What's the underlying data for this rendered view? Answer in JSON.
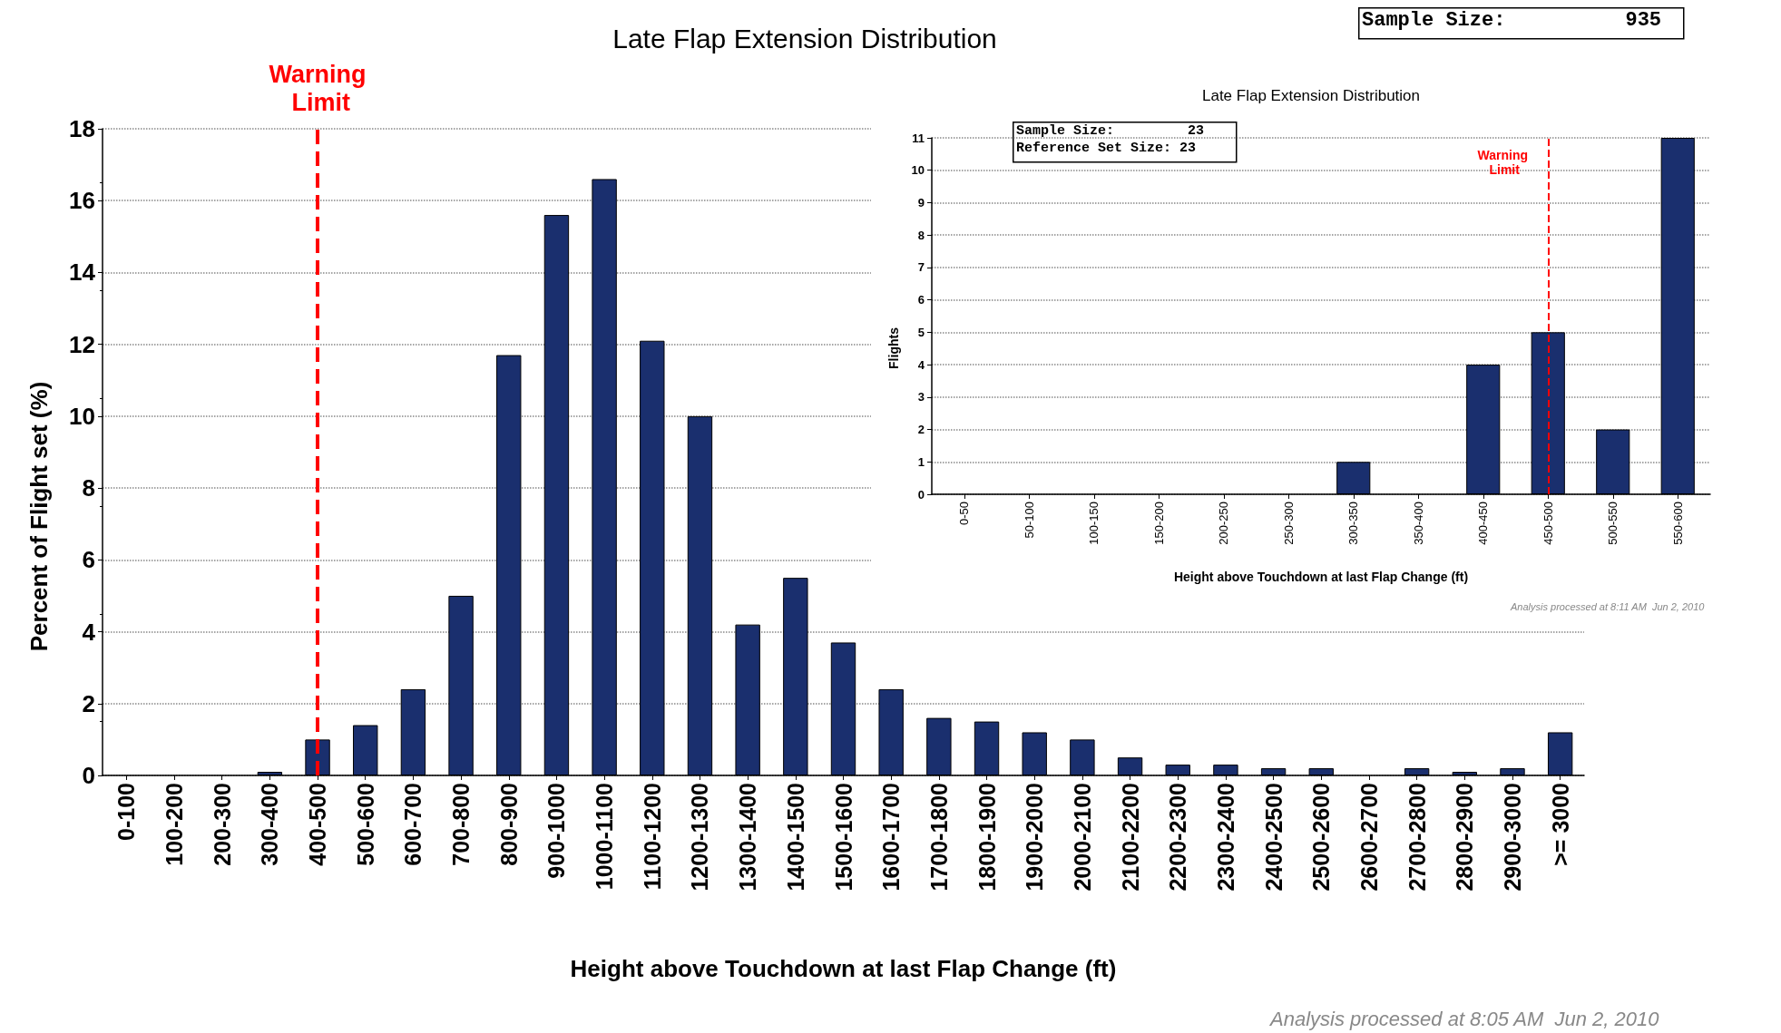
{
  "chart_data": [
    {
      "type": "bar",
      "title": "Late Flap Extension Distribution",
      "xlabel": "Height above Touchdown at last Flap Change (ft)",
      "ylabel": "Percent of Flight set (%)",
      "categories": [
        "0-100",
        "100-200",
        "200-300",
        "300-400",
        "400-500",
        "500-600",
        "600-700",
        "700-800",
        "800-900",
        "900-1000",
        "1000-1100",
        "1100-1200",
        "1200-1300",
        "1300-1400",
        "1400-1500",
        "1500-1600",
        "1600-1700",
        "1700-1800",
        "1800-1900",
        "1900-2000",
        "2000-2100",
        "2100-2200",
        "2200-2300",
        "2300-2400",
        "2400-2500",
        "2500-2600",
        "2600-2700",
        "2700-2800",
        "2800-2900",
        "2900-3000",
        ">= 3000"
      ],
      "values": [
        0,
        0,
        0,
        0.1,
        1.0,
        1.4,
        2.4,
        5.0,
        11.7,
        15.6,
        16.6,
        12.1,
        10.0,
        4.2,
        5.5,
        3.7,
        2.4,
        1.6,
        1.5,
        1.2,
        1.0,
        0.5,
        0.3,
        0.3,
        0.2,
        0.2,
        0,
        0.2,
        0.1,
        0.2,
        1.2
      ],
      "color": "#1a2f6e",
      "ylim": [
        0,
        18
      ],
      "yticks": [
        0,
        2,
        4,
        6,
        8,
        10,
        12,
        14,
        16,
        18
      ],
      "grid": "y",
      "ref_lines": [
        {
          "axis": "x",
          "value": "400-500",
          "label": "Warning Limit",
          "color": "#ff0000",
          "line_style": "dashed"
        }
      ],
      "annotations": [
        "Sample Size:          935",
        "Analysis processed at 8:05 AM  Jun 2, 2010"
      ]
    },
    {
      "type": "bar",
      "title": "Late Flap Extension Distribution",
      "xlabel": "Height above Touchdown at last Flap Change (ft)",
      "ylabel": "Flights",
      "categories": [
        "0-50",
        "50-100",
        "100-150",
        "150-200",
        "200-250",
        "250-300",
        "300-350",
        "350-400",
        "400-450",
        "450-500",
        "500-550",
        "550-600"
      ],
      "values": [
        0,
        0,
        0,
        0,
        0,
        0,
        1,
        0,
        4,
        5,
        2,
        11
      ],
      "color": "#1a2f6e",
      "ylim": [
        0,
        11
      ],
      "yticks": [
        0,
        1,
        2,
        3,
        4,
        5,
        6,
        7,
        8,
        9,
        10,
        11
      ],
      "grid": "y",
      "ref_lines": [
        {
          "axis": "x",
          "value": "450-500",
          "label": "Warning Limit",
          "color": "#ff0000",
          "line_style": "dashed"
        }
      ],
      "annotations": [
        "Sample Size:         23",
        "Reference Set Size: 23",
        "Analysis processed at 8:11 AM  Jun 2, 2010"
      ]
    }
  ]
}
